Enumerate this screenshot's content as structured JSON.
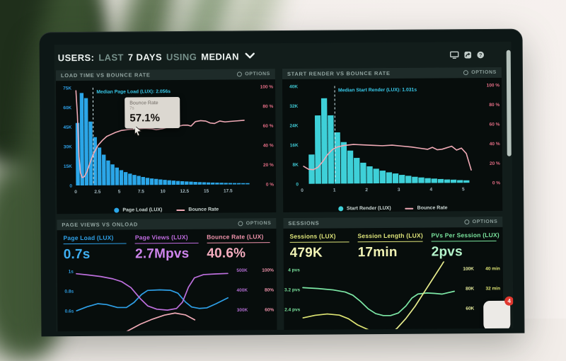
{
  "header": {
    "users": "USERS:",
    "last": "LAST",
    "days": "7 DAYS",
    "using": "USING",
    "median": "MEDIAN"
  },
  "window_icons": [
    "display-icon",
    "share-icon",
    "help-icon"
  ],
  "colors": {
    "bar_blue": "#2ba6e8",
    "bar_cyan": "#3ed0d8",
    "line_pink": "#f0aab6",
    "axis_pct_pink": "#e56e86",
    "axis_blue": "#2e9fe6",
    "axis_cyan": "#3fc9d4",
    "x_tick": "#a3b8c0",
    "annotation_cyan": "#38c9ea",
    "metric_purple": "#c06ce0",
    "metric_yellow": "#dfe57a",
    "metric_green": "#79e29c"
  },
  "badge": {
    "count": "4"
  },
  "chart_data": [
    {
      "type": "histogram+line",
      "title": "LOAD TIME VS BOUNCE RATE",
      "options_label": "OPTIONS",
      "x_unit": "seconds",
      "x_max": 20,
      "x_ticks": [
        0,
        2.5,
        5,
        7.5,
        10,
        12.5,
        15,
        17.5
      ],
      "left_axis": {
        "ticks": [
          "75K",
          "60K",
          "45K",
          "30K",
          "15K",
          "0"
        ],
        "max": 75,
        "color": "#2e9fe6"
      },
      "right_axis": {
        "ticks": [
          "100 %",
          "80 %",
          "60 %",
          "40 %",
          "20 %",
          "0 %"
        ],
        "max": 100,
        "color": "#e56e86"
      },
      "bar_color": "#2ba6e8",
      "line_color": "#f0aab6",
      "bars": {
        "name": "Page Load (LUX)",
        "start": 0,
        "width": 0.5,
        "values_k": [
          48,
          71,
          67,
          49,
          37,
          29,
          23.5,
          19,
          16,
          13.5,
          11.5,
          10,
          8.8,
          7.8,
          7,
          6.2,
          5.5,
          5,
          4.6,
          4.2,
          3.8,
          3.5,
          3.2,
          2.9,
          2.7,
          2.5,
          2.3,
          2.1,
          1.9,
          1.8,
          1.6,
          1.5,
          1.4,
          1.3,
          1.2,
          1.1,
          1.0,
          0.95,
          0.9,
          0.85
        ]
      },
      "line": {
        "name": "Bounce Rate",
        "points_pct": [
          [
            0.1,
            97
          ],
          [
            0.25,
            72
          ],
          [
            0.4,
            30
          ],
          [
            0.55,
            13
          ],
          [
            0.75,
            8
          ],
          [
            1.0,
            9
          ],
          [
            1.3,
            14
          ],
          [
            1.7,
            24
          ],
          [
            2.1,
            33
          ],
          [
            2.6,
            41
          ],
          [
            3.1,
            46
          ],
          [
            3.6,
            50
          ],
          [
            4.1,
            52
          ],
          [
            4.6,
            54
          ],
          [
            5.3,
            56
          ],
          [
            6.3,
            57.1
          ],
          [
            7.2,
            57.5
          ],
          [
            8.0,
            58
          ],
          [
            8.8,
            57.5
          ],
          [
            9.3,
            56.5
          ],
          [
            10.0,
            57.5
          ],
          [
            10.6,
            59
          ],
          [
            11.2,
            58.5
          ],
          [
            11.9,
            60
          ],
          [
            12.4,
            61
          ],
          [
            12.9,
            61
          ],
          [
            13.3,
            60
          ],
          [
            13.8,
            64.5
          ],
          [
            14.4,
            65.5
          ],
          [
            15.0,
            65
          ],
          [
            15.5,
            63
          ],
          [
            16.0,
            62.5
          ],
          [
            16.6,
            65
          ],
          [
            17.2,
            64
          ],
          [
            17.8,
            64.5
          ],
          [
            18.6,
            65
          ],
          [
            19.4,
            65.5
          ]
        ]
      },
      "median": {
        "x": 2.056,
        "label": "Median Page Load (LUX): 2.056s"
      },
      "tooltip": {
        "title": "Bounce Rate",
        "sub": "7s",
        "value": "57.1%"
      }
    },
    {
      "type": "histogram+line",
      "title": "START RENDER VS BOUNCE RATE",
      "options_label": "OPTIONS",
      "x_unit": "seconds",
      "x_max": 5.4,
      "x_ticks": [
        0,
        1,
        2,
        3,
        4,
        5
      ],
      "left_axis": {
        "ticks": [
          "40K",
          "32K",
          "24K",
          "16K",
          "8K",
          "0"
        ],
        "max": 40,
        "color": "#3fc9d4"
      },
      "right_axis": {
        "ticks": [
          "100 %",
          "80 %",
          "60 %",
          "40 %",
          "20 %",
          "0 %"
        ],
        "max": 100,
        "color": "#e56e86"
      },
      "bar_color": "#3ed0d8",
      "line_color": "#f0aab6",
      "bars": {
        "name": "Start Render (LUX)",
        "start": 0.2,
        "width": 0.2,
        "values_k": [
          12,
          28,
          35,
          28,
          21,
          17,
          13.5,
          10.5,
          8.5,
          7,
          6,
          5.2,
          4.5,
          4,
          3.4,
          3,
          2.6,
          2.3,
          2,
          1.8,
          1.6,
          1.4,
          1.3,
          1.1,
          1.0
        ]
      },
      "line": {
        "name": "Bounce Rate",
        "points_pct": [
          [
            0.05,
            18
          ],
          [
            0.2,
            15
          ],
          [
            0.35,
            14.5
          ],
          [
            0.5,
            17
          ],
          [
            0.65,
            23
          ],
          [
            0.8,
            30
          ],
          [
            0.95,
            35
          ],
          [
            1.1,
            37.5
          ],
          [
            1.3,
            39
          ],
          [
            1.6,
            40
          ],
          [
            1.9,
            39.5
          ],
          [
            2.2,
            39
          ],
          [
            2.5,
            38.5
          ],
          [
            2.8,
            39
          ],
          [
            3.1,
            38
          ],
          [
            3.4,
            37
          ],
          [
            3.7,
            35.5
          ],
          [
            3.9,
            34.5
          ],
          [
            4.05,
            36.5
          ],
          [
            4.2,
            34
          ],
          [
            4.35,
            34.5
          ],
          [
            4.5,
            36
          ],
          [
            4.65,
            37.5
          ],
          [
            4.8,
            33.5
          ],
          [
            4.95,
            35.5
          ],
          [
            5.1,
            30
          ],
          [
            5.25,
            13
          ]
        ]
      },
      "median": {
        "x": 1.031,
        "label": "Median Start Render (LUX): 1.031s"
      }
    },
    {
      "type": "multi-line",
      "title": "PAGE VIEWS VS ONLOAD",
      "options_label": "OPTIONS",
      "metrics": [
        {
          "label": "Page Load (LUX)",
          "value": "0.7s",
          "color": "#2e9fe6",
          "value_color": "#3eaef0"
        },
        {
          "label": "Page Views (LUX)",
          "value": "2.7Mpvs",
          "color": "#c06ce0",
          "value_color": "#cd84ec"
        },
        {
          "label": "Bounce Rate (LUX)",
          "value": "40.6%",
          "color": "#ef93ab",
          "value_color": "#f6adc0"
        }
      ],
      "left_axis": {
        "ticks": [
          "1s",
          "0.8s",
          "0.6s"
        ],
        "v0": 1.0,
        "dv": 0.2,
        "color": "#2e9fe6"
      },
      "right_axis_a": {
        "ticks": [
          "500K",
          "400K",
          "300K"
        ],
        "v0": 500,
        "dv": 100,
        "color": "#b06cd0"
      },
      "right_axis_b": {
        "ticks": [
          "100%",
          "80%",
          "60%"
        ],
        "v0": 100,
        "dv": 20,
        "color": "#ef93ab"
      },
      "series": [
        {
          "name": "Page Load (LUX)",
          "axis": "left",
          "color": "#2e9fe6",
          "points": [
            [
              0,
              0.6
            ],
            [
              0.07,
              0.64
            ],
            [
              0.14,
              0.67
            ],
            [
              0.2,
              0.66
            ],
            [
              0.27,
              0.63
            ],
            [
              0.33,
              0.63
            ],
            [
              0.38,
              0.68
            ],
            [
              0.43,
              0.76
            ],
            [
              0.47,
              0.8
            ],
            [
              0.55,
              0.805
            ],
            [
              0.62,
              0.8
            ],
            [
              0.67,
              0.77
            ],
            [
              0.72,
              0.68
            ],
            [
              0.76,
              0.63
            ],
            [
              0.81,
              0.615
            ],
            [
              0.86,
              0.62
            ],
            [
              0.92,
              0.66
            ],
            [
              1,
              0.72
            ]
          ]
        },
        {
          "name": "Page Views (LUX)",
          "axis": "rightA",
          "color": "#bd6fdd",
          "points": [
            [
              0,
              487
            ],
            [
              0.08,
              480
            ],
            [
              0.16,
              472
            ],
            [
              0.24,
              460
            ],
            [
              0.3,
              445
            ],
            [
              0.36,
              415
            ],
            [
              0.42,
              360
            ],
            [
              0.47,
              322
            ],
            [
              0.53,
              305
            ],
            [
              0.6,
              300
            ],
            [
              0.66,
              308
            ],
            [
              0.7,
              340
            ],
            [
              0.74,
              415
            ],
            [
              0.78,
              462
            ],
            [
              0.84,
              478
            ],
            [
              0.92,
              481
            ],
            [
              1,
              483
            ]
          ]
        },
        {
          "name": "Bounce Rate (LUX)",
          "axis": "rightB",
          "color": "#f0aab6",
          "points": [
            [
              0.22,
              30
            ],
            [
              0.32,
              38
            ],
            [
              0.42,
              46
            ],
            [
              0.5,
              51
            ],
            [
              0.58,
              55
            ],
            [
              0.65,
              57
            ],
            [
              0.72,
              55
            ],
            [
              0.78,
              50
            ]
          ]
        }
      ]
    },
    {
      "type": "multi-line",
      "title": "SESSIONS",
      "options_label": "OPTIONS",
      "metrics": [
        {
          "label": "Sessions (LUX)",
          "value": "479K",
          "color": "#dfe57a",
          "value_color": "#f1f3b5"
        },
        {
          "label": "Session Length (LUX)",
          "value": "17min",
          "color": "#dfe57a",
          "value_color": "#f1f3b5"
        },
        {
          "label": "PVs Per Session (LUX)",
          "value": "2pvs",
          "color": "#79e29c",
          "value_color": "#b5f5cc"
        }
      ],
      "left_axis": {
        "ticks": [
          "4 pvs",
          "3.2 pvs",
          "2.4 pvs"
        ],
        "v0": 4,
        "dv": 0.8,
        "color": "#79e29c"
      },
      "right_axis_a": {
        "ticks": [
          "100K",
          "80K",
          "60K"
        ],
        "v0": 100,
        "dv": 20,
        "color": "#e9ef9e"
      },
      "right_axis_b": {
        "ticks": [
          "40 min",
          "32 min",
          "24 min"
        ],
        "v0": 40,
        "dv": 8,
        "color": "#dfe573"
      },
      "series": [
        {
          "name": "PVs Per Session (LUX)",
          "axis": "left",
          "color": "#7de8a6",
          "points": [
            [
              0,
              3.27
            ],
            [
              0.1,
              3.23
            ],
            [
              0.2,
              3.17
            ],
            [
              0.28,
              3.08
            ],
            [
              0.33,
              2.95
            ],
            [
              0.38,
              2.7
            ],
            [
              0.43,
              2.4
            ],
            [
              0.48,
              2.2
            ],
            [
              0.53,
              2.12
            ],
            [
              0.58,
              2.12
            ],
            [
              0.63,
              2.22
            ],
            [
              0.68,
              2.5
            ],
            [
              0.72,
              2.82
            ],
            [
              0.76,
              2.98
            ],
            [
              0.82,
              3.02
            ],
            [
              0.87,
              3.0
            ],
            [
              0.92,
              2.97
            ],
            [
              1,
              3.08
            ]
          ]
        },
        {
          "name": "Sessions (LUX)",
          "axis": "rightA",
          "color": "#e7ec8d",
          "points": [
            [
              0.55,
              32
            ],
            [
              0.62,
              40
            ],
            [
              0.68,
              50
            ],
            [
              0.74,
              62
            ],
            [
              0.8,
              76
            ],
            [
              0.86,
              90
            ],
            [
              0.92,
              104
            ],
            [
              0.96,
              114
            ]
          ]
        },
        {
          "name": "Session Length (LUX)",
          "axis": "rightB",
          "color": "#dfe573",
          "points": [
            [
              0,
              20.5
            ],
            [
              0.08,
              21.5
            ],
            [
              0.16,
              22
            ],
            [
              0.24,
              21.5
            ],
            [
              0.3,
              20
            ],
            [
              0.36,
              17.5
            ],
            [
              0.45,
              15
            ]
          ]
        }
      ]
    }
  ]
}
